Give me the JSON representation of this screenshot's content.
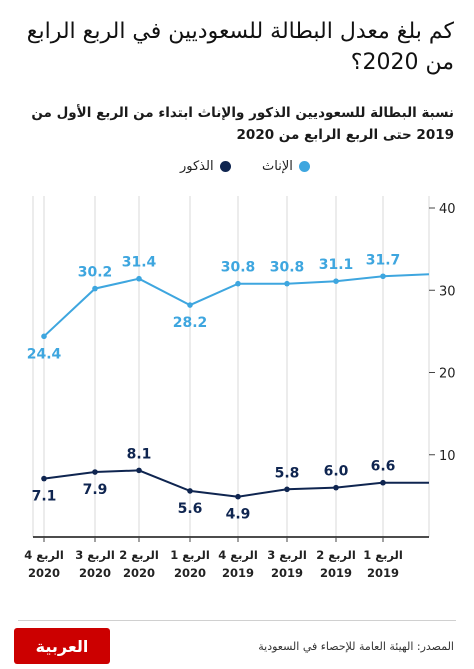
{
  "title": "كم بلغ معدل البطالة للسعوديين في الربع الرابع من 2020؟",
  "subtitle": "نسبة البطالة  للسعوديين الذكور والإناث ابتداء من الربع الأول من 2019 حتى الربع الرابع من 2020",
  "legend": {
    "female": "الإناث",
    "male": "الذكور"
  },
  "colors": {
    "female": "#3ea6df",
    "male": "#0f2550",
    "grid": "#d9d9d9",
    "logo": "#cc0000"
  },
  "source": "المصدر: الهيئة العامة للإحصاء في السعودية",
  "logo_text": "العربية",
  "chart_data": {
    "type": "line",
    "categories": [
      [
        "الربع 4",
        "2020"
      ],
      [
        "الربع 3",
        "2020"
      ],
      [
        "الربع 2",
        "2020"
      ],
      [
        "الربع 1",
        "2020"
      ],
      [
        "الربع 4",
        "2019"
      ],
      [
        "الربع 3",
        "2019"
      ],
      [
        "الربع 2",
        "2019"
      ],
      [
        "الربع 1",
        "2019"
      ]
    ],
    "series": [
      {
        "name": "الإناث",
        "key": "female",
        "values": [
          24.4,
          30.2,
          31.4,
          28.2,
          30.8,
          30.8,
          31.1,
          31.7
        ],
        "labels": [
          "24.4",
          "30.2",
          "31.4",
          "28.2",
          "30.8",
          "30.8",
          "31.1",
          "31.7"
        ]
      },
      {
        "name": "الذكور",
        "key": "male",
        "values": [
          7.1,
          7.9,
          8.1,
          5.6,
          4.9,
          5.8,
          6.0,
          6.6
        ],
        "labels": [
          "7.1",
          "7.9",
          "8.1",
          "5.6",
          "4.9",
          "5.8",
          "6.0",
          "6.6"
        ]
      }
    ],
    "y_axis_position": "right",
    "yticks": [
      "10",
      "20",
      "30",
      "40"
    ],
    "ylim": [
      0,
      40
    ],
    "grid": "vertical",
    "legend_position": "top"
  }
}
